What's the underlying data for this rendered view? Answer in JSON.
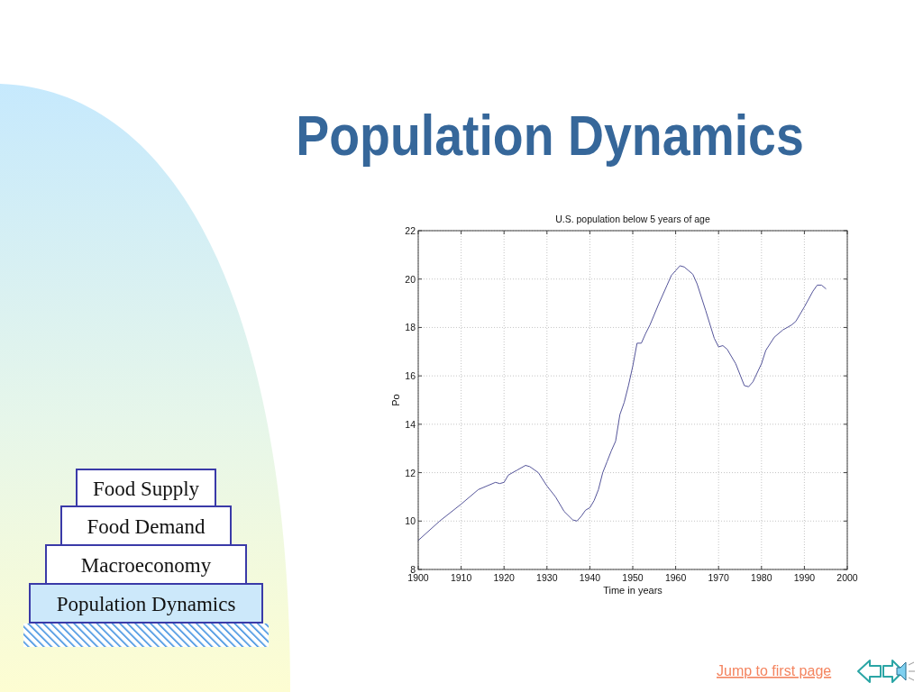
{
  "chart_data": {
    "type": "line",
    "title": "Population Dynamics",
    "subtitle": "U.S. population below 5 years of age",
    "xlabel": "Time in years",
    "ylabel": "Po",
    "series": [
      {
        "color": "#55559a",
        "x": [
          1900,
          1905,
          1910,
          1914,
          1918,
          1919,
          1920,
          1921,
          1923,
          1925,
          1926,
          1928,
          1930,
          1932,
          1934,
          1936,
          1937,
          1938,
          1939,
          1940,
          1941,
          1942,
          1943,
          1944,
          1945,
          1946,
          1947,
          1948,
          1949,
          1950,
          1951,
          1952,
          1953,
          1954,
          1956,
          1958,
          1959,
          1960,
          1961,
          1962,
          1963,
          1964,
          1965,
          1967,
          1969,
          1970,
          1971,
          1972,
          1974,
          1976,
          1977,
          1978,
          1980,
          1981,
          1983,
          1985,
          1987,
          1988,
          1990,
          1992,
          1993,
          1994,
          1995
        ],
        "values": [
          9.2,
          10.0,
          10.7,
          11.3,
          11.6,
          11.55,
          11.6,
          11.9,
          12.1,
          12.3,
          12.25,
          12.0,
          11.45,
          11.0,
          10.4,
          10.05,
          10.0,
          10.2,
          10.45,
          10.55,
          10.85,
          11.3,
          12.0,
          12.45,
          12.9,
          13.3,
          14.4,
          14.9,
          15.6,
          16.4,
          17.35,
          17.35,
          17.75,
          18.1,
          18.95,
          19.75,
          20.15,
          20.35,
          20.55,
          20.5,
          20.35,
          20.2,
          19.8,
          18.7,
          17.55,
          17.2,
          17.25,
          17.1,
          16.5,
          15.6,
          15.55,
          15.75,
          16.5,
          17.05,
          17.6,
          17.9,
          18.1,
          18.25,
          18.85,
          19.5,
          19.75,
          19.75,
          19.6
        ]
      }
    ],
    "xlim": [
      1900,
      2000
    ],
    "xticks": [
      1900,
      1910,
      1920,
      1930,
      1940,
      1950,
      1960,
      1970,
      1980,
      1990,
      2000
    ],
    "ylim": [
      8,
      22
    ],
    "yticks": [
      8,
      10,
      12,
      14,
      16,
      18,
      20,
      22
    ],
    "grid": true,
    "line_style": "solid",
    "annotations": [
      "Food Supply",
      "Food Demand",
      "Macroeconomy",
      "Population Dynamics",
      "Jump to first page"
    ]
  }
}
